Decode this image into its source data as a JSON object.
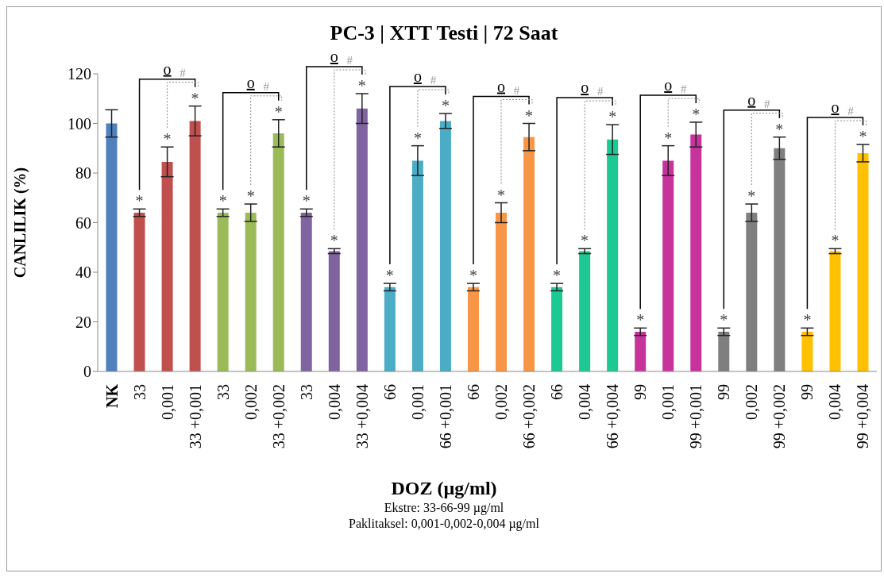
{
  "chart_data": {
    "type": "bar",
    "title": "PC-3 | XTT Testi | 72 Saat",
    "xlabel": "DOZ (µg/ml)",
    "ylabel": "CANLILIK (%)",
    "categories": [
      "NK",
      "33",
      "0,001",
      "33 +0,001",
      "33",
      "0,002",
      "33 +0,002",
      "33",
      "0,004",
      "33 +0,004",
      "66",
      "0,001",
      "66 +0,001",
      "66",
      "0,002",
      "66 +0,002",
      "66",
      "0,004",
      "66 +0,004",
      "99",
      "0,001",
      "99 +0,001",
      "99",
      "0,002",
      "99 +0,002",
      "99",
      "0,004",
      "99 +0,004"
    ],
    "values": [
      100,
      64,
      84.5,
      101,
      64,
      64,
      96,
      64,
      48.5,
      106,
      34,
      85,
      101,
      34,
      64,
      94.5,
      34,
      48.5,
      93.5,
      16,
      85,
      95.5,
      16,
      64,
      90,
      16,
      48.5,
      88
    ],
    "errors": [
      5.5,
      1.5,
      6,
      6,
      1.5,
      3.5,
      5.5,
      1.5,
      1,
      6,
      1.5,
      6,
      3,
      1.5,
      4,
      5.5,
      1.5,
      1,
      6,
      1.5,
      6,
      5,
      1.5,
      3.5,
      4.5,
      1.5,
      1,
      3.5
    ],
    "colors": [
      "#4f81bd",
      "#c0504d",
      "#c0504d",
      "#c0504d",
      "#9bbb59",
      "#9bbb59",
      "#9bbb59",
      "#8064a2",
      "#8064a2",
      "#8064a2",
      "#4bacc6",
      "#4bacc6",
      "#4bacc6",
      "#f79646",
      "#f79646",
      "#f79646",
      "#1dc993",
      "#1dc993",
      "#1dc993",
      "#c8329b",
      "#c8329b",
      "#c8329b",
      "#7f7f7f",
      "#7f7f7f",
      "#7f7f7f",
      "#ffc000",
      "#ffc000",
      "#ffc000"
    ],
    "value_labels": [
      null,
      "*",
      "*",
      "*",
      "*",
      "*",
      "*",
      "*",
      "*",
      "*",
      "*",
      "*",
      "*",
      "*",
      "*",
      "*",
      "*",
      "*",
      "*",
      "*",
      "*",
      "*",
      "*",
      "*",
      "*",
      "*",
      "*",
      "*"
    ],
    "ylim": [
      0,
      120
    ],
    "yticks": [
      0,
      20,
      40,
      60,
      80,
      100,
      120
    ],
    "grid": false,
    "legend": false,
    "annotations": [
      "Ekstre: 33-66-99 µg/ml",
      "Paklitaksel: 0,001-0,002-0,004 µg/ml",
      "o",
      "#",
      "o",
      "#",
      "o",
      "#",
      "o",
      "#",
      "o",
      "#",
      "o",
      "#",
      "o",
      "#",
      "o",
      "#",
      "o",
      "#"
    ]
  }
}
